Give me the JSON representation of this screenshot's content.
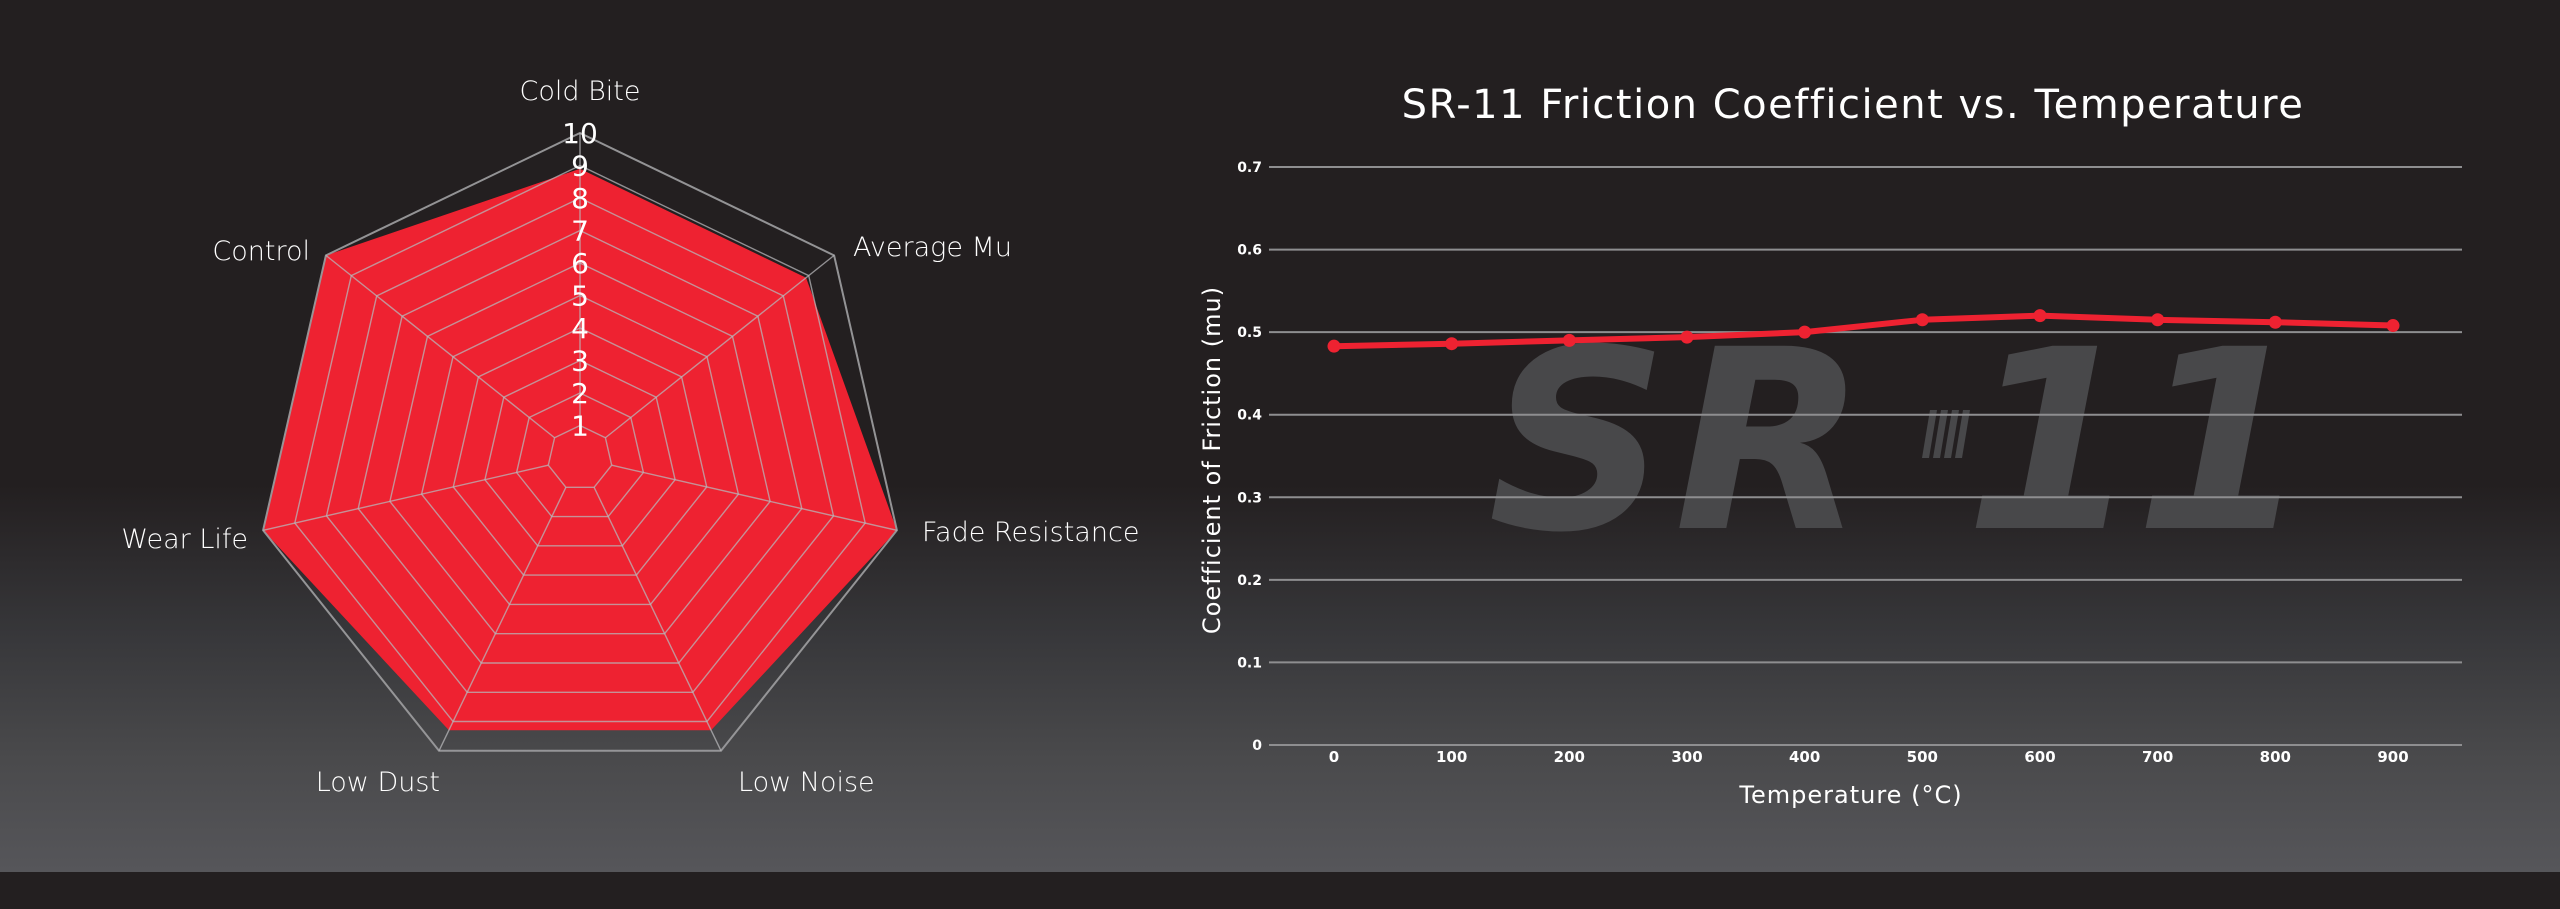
{
  "colors": {
    "background": "#231f20",
    "panel_bottom": "#56565a",
    "accent": "#ee2231",
    "grid": "#8e8e90",
    "watermark": "#48484a"
  },
  "watermark": {
    "text": "SR 11"
  },
  "chart_data": [
    {
      "type": "radar",
      "axes": [
        "Cold Bite",
        "Average Mu",
        "Fade Resistance",
        "Low Noise",
        "Low Dust",
        "Wear Life",
        "Control"
      ],
      "scale": {
        "min": 0,
        "max": 10,
        "rings": [
          "1",
          "2",
          "3",
          "4",
          "5",
          "6",
          "7",
          "8",
          "9",
          "10"
        ]
      },
      "series": [
        {
          "values": [
            8.9,
            8.9,
            10,
            9.3,
            9.3,
            10,
            10
          ]
        }
      ],
      "grid": true,
      "legend": "none"
    },
    {
      "type": "line",
      "title": "SR-11 Friction Coefficient vs. Temperature",
      "xlabel": "Temperature (°C)",
      "ylabel": "Coefficient of Friction (mu)",
      "x": [
        0,
        100,
        200,
        300,
        400,
        500,
        600,
        700,
        800,
        900
      ],
      "x_ticks": [
        "0",
        "100",
        "200",
        "300",
        "400",
        "500",
        "600",
        "700",
        "800",
        "900"
      ],
      "y_ticks": [
        "0",
        "0.1",
        "0.2",
        "0.3",
        "0.4",
        "0.5",
        "0.6",
        "0.7"
      ],
      "ylim": [
        0,
        0.7
      ],
      "series": [
        {
          "values": [
            0.483,
            0.486,
            0.49,
            0.494,
            0.5,
            0.515,
            0.52,
            0.515,
            0.512,
            0.508
          ]
        }
      ],
      "grid": true,
      "legend": "none"
    }
  ]
}
